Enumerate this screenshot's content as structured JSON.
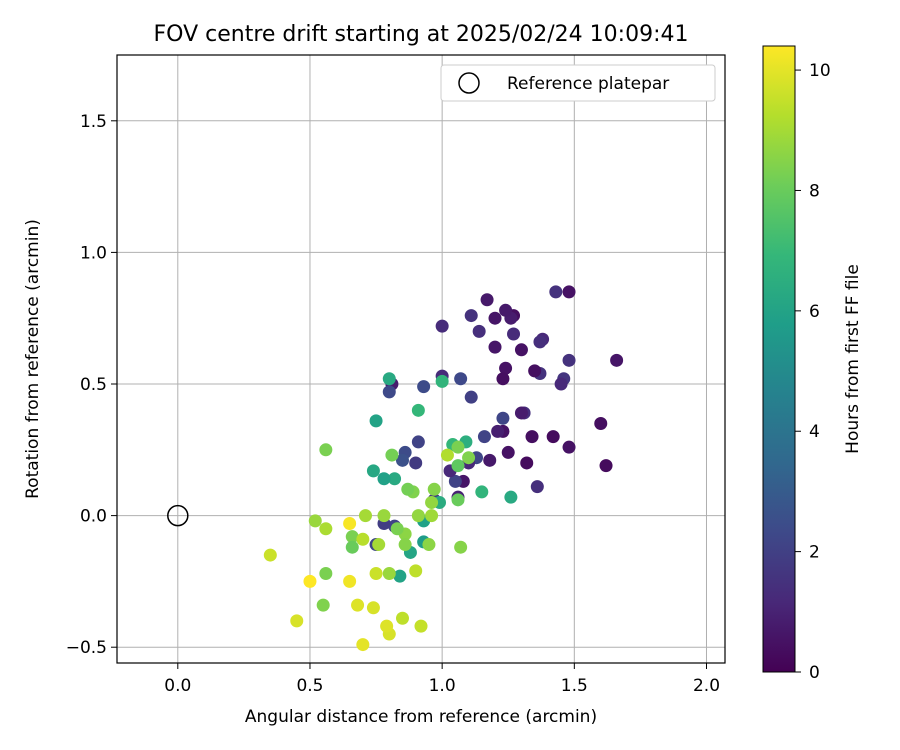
{
  "chart_data": {
    "type": "scatter",
    "title": "FOV centre drift starting at 2025/02/24 10:09:41",
    "xlabel": "Angular distance from reference (arcmin)",
    "ylabel": "Rotation from reference (arcmin)",
    "xlim": [
      -0.23,
      2.07
    ],
    "ylim": [
      -0.56,
      1.75
    ],
    "xticks": [
      0.0,
      0.5,
      1.0,
      1.5,
      2.0
    ],
    "xtick_labels": [
      "0.0",
      "0.5",
      "1.0",
      "1.5",
      "2.0"
    ],
    "yticks": [
      -0.5,
      0.0,
      0.5,
      1.0,
      1.5
    ],
    "ytick_labels": [
      "−0.5",
      "0.0",
      "0.5",
      "1.0",
      "1.5"
    ],
    "grid": true,
    "legend": {
      "placement": "top-right",
      "entries": [
        "Reference platepar"
      ]
    },
    "reference_point": {
      "name": "Reference platepar",
      "x": 0.0,
      "y": 0.0,
      "marker": "open-circle"
    },
    "colorbar": {
      "label": "Hours from first FF file",
      "range": [
        0,
        10.4
      ],
      "ticks": [
        0,
        2,
        4,
        6,
        8,
        10
      ],
      "tick_labels": [
        "0",
        "2",
        "4",
        "6",
        "8",
        "10"
      ],
      "colormap": "viridis"
    },
    "points": [
      {
        "x": 1.66,
        "y": 0.59,
        "c": 0.6
      },
      {
        "x": 1.62,
        "y": 0.19,
        "c": 0.3
      },
      {
        "x": 1.6,
        "y": 0.35,
        "c": 0.4
      },
      {
        "x": 1.48,
        "y": 0.85,
        "c": 0.5
      },
      {
        "x": 1.48,
        "y": 0.59,
        "c": 1.5
      },
      {
        "x": 1.48,
        "y": 0.26,
        "c": 0.5
      },
      {
        "x": 1.46,
        "y": 0.52,
        "c": 1.6
      },
      {
        "x": 1.45,
        "y": 0.5,
        "c": 1.2
      },
      {
        "x": 1.43,
        "y": 0.85,
        "c": 1.5
      },
      {
        "x": 1.42,
        "y": 0.3,
        "c": 0.3
      },
      {
        "x": 1.38,
        "y": 0.67,
        "c": 1.2
      },
      {
        "x": 1.37,
        "y": 0.66,
        "c": 1.4
      },
      {
        "x": 1.37,
        "y": 0.54,
        "c": 1.5
      },
      {
        "x": 1.36,
        "y": 0.11,
        "c": 1.4
      },
      {
        "x": 1.35,
        "y": 0.55,
        "c": 0.4
      },
      {
        "x": 1.34,
        "y": 0.3,
        "c": 0.4
      },
      {
        "x": 1.32,
        "y": 0.2,
        "c": 0.3
      },
      {
        "x": 1.31,
        "y": 0.39,
        "c": 1.4
      },
      {
        "x": 1.3,
        "y": 0.39,
        "c": 0.8
      },
      {
        "x": 1.3,
        "y": 0.63,
        "c": 0.5
      },
      {
        "x": 1.27,
        "y": 0.69,
        "c": 1.3
      },
      {
        "x": 1.27,
        "y": 0.76,
        "c": 0.4
      },
      {
        "x": 1.26,
        "y": 0.75,
        "c": 0.8
      },
      {
        "x": 1.24,
        "y": 0.78,
        "c": 0.7
      },
      {
        "x": 1.25,
        "y": 0.24,
        "c": 0.5
      },
      {
        "x": 1.24,
        "y": 0.56,
        "c": 0.5
      },
      {
        "x": 1.23,
        "y": 0.52,
        "c": 0.4
      },
      {
        "x": 1.23,
        "y": 0.37,
        "c": 2.2
      },
      {
        "x": 1.23,
        "y": 0.32,
        "c": 0.5
      },
      {
        "x": 1.21,
        "y": 0.32,
        "c": 0.9
      },
      {
        "x": 1.2,
        "y": 0.75,
        "c": 0.6
      },
      {
        "x": 1.2,
        "y": 0.64,
        "c": 0.6
      },
      {
        "x": 1.18,
        "y": 0.21,
        "c": 0.7
      },
      {
        "x": 1.17,
        "y": 0.82,
        "c": 0.7
      },
      {
        "x": 1.16,
        "y": 0.3,
        "c": 2.1
      },
      {
        "x": 1.14,
        "y": 0.7,
        "c": 1.4
      },
      {
        "x": 1.13,
        "y": 0.22,
        "c": 2.2
      },
      {
        "x": 1.11,
        "y": 0.45,
        "c": 2.0
      },
      {
        "x": 1.11,
        "y": 0.76,
        "c": 1.5
      },
      {
        "x": 1.1,
        "y": 0.2,
        "c": 1.2
      },
      {
        "x": 1.08,
        "y": 0.13,
        "c": 0.6
      },
      {
        "x": 1.07,
        "y": 0.52,
        "c": 2.3
      },
      {
        "x": 1.06,
        "y": 0.07,
        "c": 1.0
      },
      {
        "x": 1.05,
        "y": 0.13,
        "c": 2.1
      },
      {
        "x": 1.03,
        "y": 0.17,
        "c": 1.2
      },
      {
        "x": 1.0,
        "y": 0.72,
        "c": 1.3
      },
      {
        "x": 1.0,
        "y": 0.53,
        "c": 1.3
      },
      {
        "x": 0.97,
        "y": 0.06,
        "c": 1.8
      },
      {
        "x": 0.93,
        "y": 0.49,
        "c": 2.4
      },
      {
        "x": 0.91,
        "y": 0.28,
        "c": 2.1
      },
      {
        "x": 0.9,
        "y": 0.2,
        "c": 1.8
      },
      {
        "x": 0.86,
        "y": 0.24,
        "c": 2.4
      },
      {
        "x": 0.85,
        "y": 0.21,
        "c": 2.6
      },
      {
        "x": 0.81,
        "y": 0.5,
        "c": 0.8
      },
      {
        "x": 0.8,
        "y": 0.47,
        "c": 2.3
      },
      {
        "x": 0.82,
        "y": -0.04,
        "c": 2.1
      },
      {
        "x": 0.78,
        "y": -0.03,
        "c": 1.9
      },
      {
        "x": 0.75,
        "y": -0.11,
        "c": 2.2
      },
      {
        "x": 1.26,
        "y": 0.07,
        "c": 6.3
      },
      {
        "x": 1.15,
        "y": 0.09,
        "c": 6.8
      },
      {
        "x": 1.09,
        "y": 0.28,
        "c": 6.5
      },
      {
        "x": 1.04,
        "y": 0.27,
        "c": 6.9
      },
      {
        "x": 1.0,
        "y": 0.51,
        "c": 6.8
      },
      {
        "x": 0.99,
        "y": 0.05,
        "c": 6.4
      },
      {
        "x": 0.93,
        "y": -0.02,
        "c": 5.9
      },
      {
        "x": 0.93,
        "y": -0.1,
        "c": 5.7
      },
      {
        "x": 0.91,
        "y": 0.4,
        "c": 6.9
      },
      {
        "x": 0.88,
        "y": -0.14,
        "c": 6.1
      },
      {
        "x": 0.84,
        "y": -0.23,
        "c": 6.0
      },
      {
        "x": 0.82,
        "y": 0.14,
        "c": 6.3
      },
      {
        "x": 0.8,
        "y": 0.52,
        "c": 6.3
      },
      {
        "x": 0.78,
        "y": 0.14,
        "c": 5.9
      },
      {
        "x": 0.75,
        "y": 0.36,
        "c": 6.0
      },
      {
        "x": 0.74,
        "y": 0.17,
        "c": 6.2
      },
      {
        "x": 1.1,
        "y": 0.22,
        "c": 8.4
      },
      {
        "x": 1.06,
        "y": 0.26,
        "c": 8.3
      },
      {
        "x": 1.06,
        "y": 0.19,
        "c": 7.8
      },
      {
        "x": 1.06,
        "y": 0.06,
        "c": 8.0
      },
      {
        "x": 1.07,
        "y": -0.12,
        "c": 8.5
      },
      {
        "x": 1.02,
        "y": 0.23,
        "c": 9.2
      },
      {
        "x": 0.97,
        "y": 0.1,
        "c": 8.5
      },
      {
        "x": 0.96,
        "y": 0.05,
        "c": 8.7
      },
      {
        "x": 0.96,
        "y": 0.0,
        "c": 8.9
      },
      {
        "x": 0.95,
        "y": -0.11,
        "c": 8.6
      },
      {
        "x": 0.91,
        "y": 0.0,
        "c": 8.7
      },
      {
        "x": 0.89,
        "y": 0.09,
        "c": 8.4
      },
      {
        "x": 0.87,
        "y": 0.1,
        "c": 8.2
      },
      {
        "x": 0.86,
        "y": -0.07,
        "c": 8.6
      },
      {
        "x": 0.86,
        "y": -0.11,
        "c": 8.5
      },
      {
        "x": 0.83,
        "y": -0.05,
        "c": 8.3
      },
      {
        "x": 0.81,
        "y": 0.23,
        "c": 8.2
      },
      {
        "x": 0.8,
        "y": -0.22,
        "c": 8.8
      },
      {
        "x": 0.78,
        "y": 0.0,
        "c": 8.8
      },
      {
        "x": 0.76,
        "y": -0.11,
        "c": 9.0
      },
      {
        "x": 0.71,
        "y": 0.0,
        "c": 9.0
      },
      {
        "x": 0.66,
        "y": -0.08,
        "c": 8.3
      },
      {
        "x": 0.66,
        "y": -0.12,
        "c": 8.0
      },
      {
        "x": 0.56,
        "y": 0.25,
        "c": 8.3
      },
      {
        "x": 0.56,
        "y": -0.05,
        "c": 9.1
      },
      {
        "x": 0.56,
        "y": -0.22,
        "c": 8.3
      },
      {
        "x": 0.52,
        "y": -0.02,
        "c": 8.8
      },
      {
        "x": 0.55,
        "y": -0.34,
        "c": 8.4
      },
      {
        "x": 0.9,
        "y": -0.21,
        "c": 9.4
      },
      {
        "x": 0.92,
        "y": -0.42,
        "c": 9.5
      },
      {
        "x": 0.85,
        "y": -0.39,
        "c": 9.4
      },
      {
        "x": 0.8,
        "y": -0.45,
        "c": 9.8
      },
      {
        "x": 0.79,
        "y": -0.42,
        "c": 9.9
      },
      {
        "x": 0.75,
        "y": -0.22,
        "c": 9.6
      },
      {
        "x": 0.74,
        "y": -0.35,
        "c": 9.8
      },
      {
        "x": 0.7,
        "y": -0.49,
        "c": 10.0
      },
      {
        "x": 0.7,
        "y": -0.09,
        "c": 9.3
      },
      {
        "x": 0.68,
        "y": -0.34,
        "c": 9.9
      },
      {
        "x": 0.65,
        "y": -0.25,
        "c": 10.2
      },
      {
        "x": 0.65,
        "y": -0.03,
        "c": 10.3
      },
      {
        "x": 0.5,
        "y": -0.25,
        "c": 10.4
      },
      {
        "x": 0.45,
        "y": -0.4,
        "c": 9.8
      },
      {
        "x": 0.35,
        "y": -0.15,
        "c": 9.6
      }
    ]
  }
}
